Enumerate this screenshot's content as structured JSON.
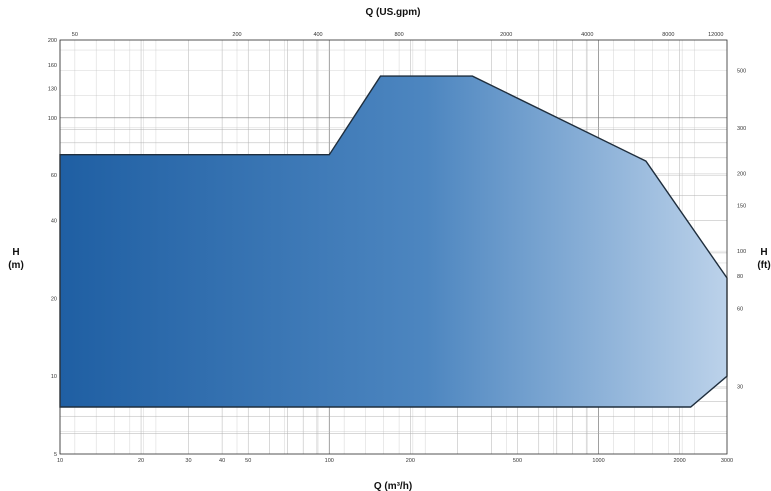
{
  "chart_data": {
    "type": "area",
    "title": "",
    "xlabel_bottom": "Q (m³/h)",
    "xlabel_top": "Q (US.gpm)",
    "ylabel_left": [
      "H",
      "(m)"
    ],
    "ylabel_right": [
      "H",
      "(ft)"
    ],
    "x_scale": "log",
    "y_scale": "log",
    "xlim": [
      10,
      3000
    ],
    "ylim": [
      5,
      200
    ],
    "grid": true,
    "fill_colors": {
      "start": "#1f5fa3",
      "end": "#bcd2ea"
    },
    "outline_color": "#1f2e3d",
    "x_ticks_bottom": [
      {
        "v": 10,
        "label": "10"
      },
      {
        "v": 20,
        "label": "20"
      },
      {
        "v": 30,
        "label": "30"
      },
      {
        "v": 40,
        "label": "40"
      },
      {
        "v": 50,
        "label": "50"
      },
      {
        "v": 100,
        "label": "100"
      },
      {
        "v": 200,
        "label": "200"
      },
      {
        "v": 500,
        "label": "500"
      },
      {
        "v": 1000,
        "label": "1000"
      },
      {
        "v": 2000,
        "label": "2000"
      },
      {
        "v": 3000,
        "label": "3000"
      }
    ],
    "x_ticks_top_gpm": [
      {
        "v": 50,
        "label": "50"
      },
      {
        "v": 200,
        "label": "200"
      },
      {
        "v": 400,
        "label": "400"
      },
      {
        "v": 800,
        "label": "800"
      },
      {
        "v": 2000,
        "label": "2000"
      },
      {
        "v": 4000,
        "label": "4000"
      },
      {
        "v": 8000,
        "label": "8000"
      },
      {
        "v": 12000,
        "label": "12000"
      }
    ],
    "y_ticks_left": [
      {
        "v": 5,
        "label": "5"
      },
      {
        "v": 10,
        "label": "10"
      },
      {
        "v": 20,
        "label": "20"
      },
      {
        "v": 40,
        "label": "40"
      },
      {
        "v": 60,
        "label": "60"
      },
      {
        "v": 100,
        "label": "100"
      },
      {
        "v": 130,
        "label": "130"
      },
      {
        "v": 160,
        "label": "160"
      },
      {
        "v": 200,
        "label": "200"
      }
    ],
    "y_ticks_right_ft": [
      {
        "v": 30,
        "label": "30"
      },
      {
        "v": 60,
        "label": "60"
      },
      {
        "v": 80,
        "label": "80"
      },
      {
        "v": 100,
        "label": "100"
      },
      {
        "v": 150,
        "label": "150"
      },
      {
        "v": 200,
        "label": "200"
      },
      {
        "v": 300,
        "label": "300"
      },
      {
        "v": 500,
        "label": "500"
      }
    ],
    "envelope": [
      {
        "x": 10,
        "y": 7.6
      },
      {
        "x": 10,
        "y": 72
      },
      {
        "x": 100,
        "y": 72
      },
      {
        "x": 155,
        "y": 145
      },
      {
        "x": 340,
        "y": 145
      },
      {
        "x": 1500,
        "y": 68
      },
      {
        "x": 3000,
        "y": 24
      },
      {
        "x": 3000,
        "y": 10
      },
      {
        "x": 2200,
        "y": 7.6
      }
    ]
  }
}
